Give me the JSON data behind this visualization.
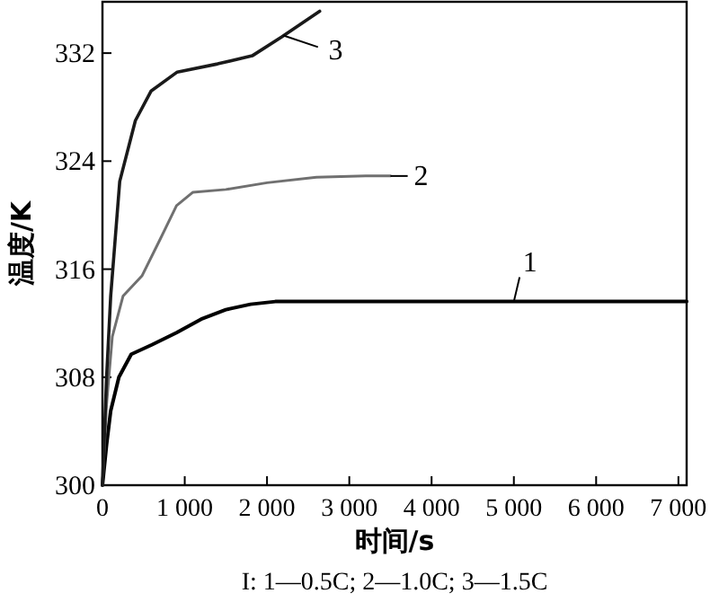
{
  "chart_data": {
    "type": "line",
    "xlabel": "时间/s",
    "ylabel": "温度/K",
    "xlim": [
      0,
      7100
    ],
    "ylim": [
      300,
      335.8
    ],
    "xticks": [
      0,
      {
        "value": 1000,
        "label": "1 000"
      },
      {
        "value": 2000,
        "label": "2 000"
      },
      {
        "value": 3000,
        "label": "3 000"
      },
      {
        "value": 4000,
        "label": "4 000"
      },
      {
        "value": 5000,
        "label": "5 000"
      },
      {
        "value": 6000,
        "label": "6 000"
      },
      {
        "value": 7000,
        "label": "7 000"
      }
    ],
    "yticks": [
      300,
      308,
      316,
      324,
      332
    ],
    "grid": false,
    "marker": "none",
    "line_style": "solid",
    "series": [
      {
        "color": "#000000",
        "x": [
          0,
          50,
          100,
          200,
          350,
          600,
          900,
          1200,
          1500,
          1800,
          2100,
          3000,
          5000,
          7100
        ],
        "values": [
          300,
          303,
          305.5,
          308,
          309.7,
          310.4,
          311.3,
          312.3,
          313,
          313.4,
          313.6,
          313.6,
          313.6,
          313.6
        ]
      },
      {
        "color": "#707070",
        "x": [
          0,
          50,
          120,
          250,
          480,
          700,
          900,
          1100,
          1500,
          2000,
          2600,
          3200,
          3500
        ],
        "values": [
          300,
          306,
          311,
          314,
          315.5,
          318.2,
          320.7,
          321.7,
          321.9,
          322.4,
          322.8,
          322.9,
          322.9
        ]
      },
      {
        "color": "#1a1a1a",
        "x": [
          0,
          50,
          100,
          210,
          400,
          592,
          909,
          1400,
          1820,
          2180,
          2640
        ],
        "values": [
          300,
          308,
          314,
          322.5,
          327,
          329.2,
          330.6,
          331.2,
          331.8,
          333.2,
          335.1
        ]
      }
    ],
    "annotations": [
      {
        "text": "1",
        "x": 5000,
        "y": 313.6
      },
      {
        "text": "2",
        "x": 3500,
        "y": 322.9
      },
      {
        "text": "3",
        "x": 2200,
        "y": 333.3
      },
      "I: 1—0.5C; 2—1.0C; 3—1.5C"
    ]
  }
}
